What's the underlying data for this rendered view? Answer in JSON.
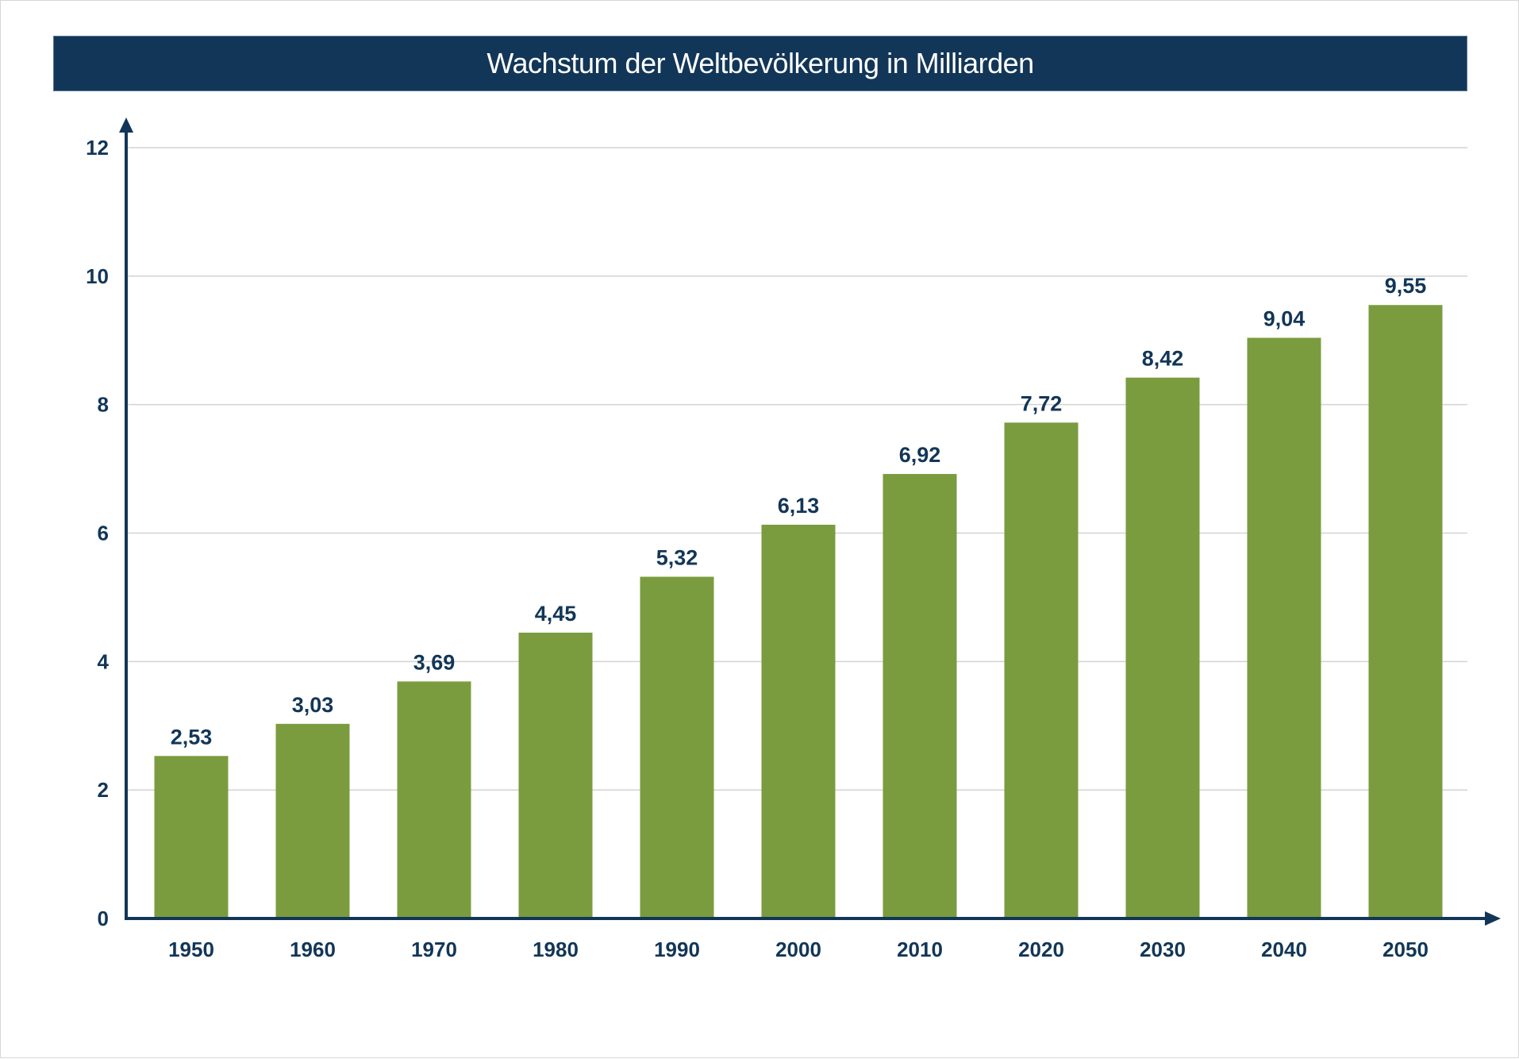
{
  "chart_data": {
    "type": "bar",
    "title": "Wachstum der Weltbevölkerung in Milliarden",
    "categories": [
      "1950",
      "1960",
      "1970",
      "1980",
      "1990",
      "2000",
      "2010",
      "2020",
      "2030",
      "2040",
      "2050"
    ],
    "values": [
      2.53,
      3.03,
      3.69,
      4.45,
      5.32,
      6.13,
      6.92,
      7.72,
      8.42,
      9.04,
      9.55
    ],
    "value_labels": [
      "2,53",
      "3,03",
      "3,69",
      "4,45",
      "5,32",
      "6,13",
      "6,92",
      "7,72",
      "8,42",
      "9,04",
      "9,55"
    ],
    "yticks": [
      "0",
      "2",
      "4",
      "6",
      "8",
      "10",
      "12"
    ],
    "ylim": [
      0,
      12
    ],
    "xlabel": "",
    "ylabel": "",
    "grid": true,
    "legend": "none"
  },
  "colors": {
    "bar": "#7a9c3f",
    "axis": "#123657",
    "grid": "#d3d3d3",
    "title_bg": "#123657",
    "title_text": "#ffffff"
  }
}
